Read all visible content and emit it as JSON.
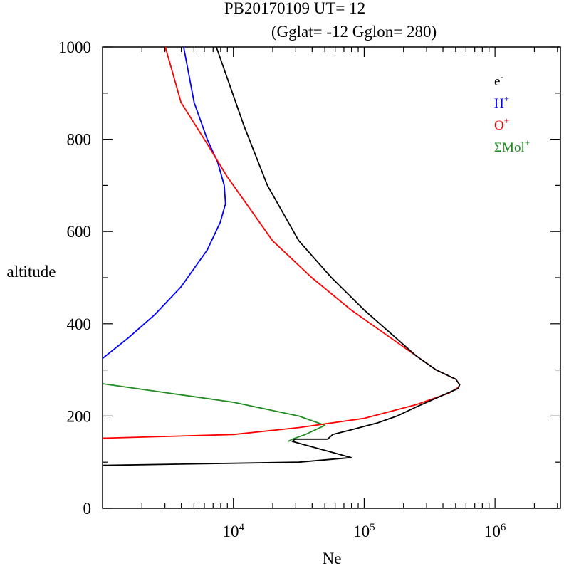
{
  "title": {
    "line1": "PB20170109   UT=  12",
    "line2": "(Gglat= -12   Gglon=  280)"
  },
  "chart_data": {
    "type": "line",
    "xlabel": "Ne",
    "ylabel": "altitude",
    "x_scale": "log",
    "xlim_log10": [
      3.0,
      6.5
    ],
    "ylim": [
      0,
      1000
    ],
    "y_ticks": [
      "0",
      "200",
      "400",
      "600",
      "800",
      "1000"
    ],
    "x_ticks": [
      {
        "log10": 4,
        "base": "10",
        "exp": "4"
      },
      {
        "log10": 5,
        "base": "10",
        "exp": "5"
      },
      {
        "log10": 6,
        "base": "10",
        "exp": "6"
      }
    ],
    "legend_position": "top-right",
    "series": [
      {
        "key": "electron",
        "name": "e",
        "sup": "-",
        "color": "#000000",
        "points": [
          [
            3.0,
            93
          ],
          [
            4.5,
            100
          ],
          [
            4.9,
            110
          ],
          [
            4.45,
            145
          ],
          [
            4.47,
            150
          ],
          [
            4.72,
            150
          ],
          [
            4.76,
            160
          ],
          [
            4.9,
            170
          ],
          [
            5.1,
            185
          ],
          [
            5.25,
            200
          ],
          [
            5.4,
            220
          ],
          [
            5.6,
            245
          ],
          [
            5.72,
            260
          ],
          [
            5.73,
            268
          ],
          [
            5.7,
            280
          ],
          [
            5.55,
            300
          ],
          [
            5.4,
            330
          ],
          [
            5.2,
            380
          ],
          [
            5.0,
            430
          ],
          [
            4.75,
            500
          ],
          [
            4.5,
            580
          ],
          [
            4.26,
            700
          ],
          [
            4.08,
            830
          ],
          [
            3.87,
            1000
          ]
        ]
      },
      {
        "key": "hplus",
        "name": "H",
        "sup": "+",
        "color": "#0000ff",
        "points": [
          [
            3.0,
            325
          ],
          [
            3.2,
            370
          ],
          [
            3.4,
            420
          ],
          [
            3.6,
            480
          ],
          [
            3.8,
            560
          ],
          [
            3.9,
            620
          ],
          [
            3.94,
            660
          ],
          [
            3.93,
            700
          ],
          [
            3.88,
            750
          ],
          [
            3.8,
            800
          ],
          [
            3.7,
            880
          ],
          [
            3.62,
            1000
          ]
        ]
      },
      {
        "key": "oplus",
        "name": "O",
        "sup": "+",
        "color": "#ff0000",
        "points": [
          [
            3.0,
            152
          ],
          [
            4.0,
            160
          ],
          [
            4.5,
            175
          ],
          [
            5.0,
            195
          ],
          [
            5.4,
            225
          ],
          [
            5.65,
            250
          ],
          [
            5.72,
            262
          ],
          [
            5.73,
            268
          ],
          [
            5.7,
            280
          ],
          [
            5.55,
            300
          ],
          [
            5.35,
            340
          ],
          [
            5.15,
            380
          ],
          [
            4.9,
            430
          ],
          [
            4.6,
            500
          ],
          [
            4.3,
            580
          ],
          [
            4.1,
            660
          ],
          [
            3.95,
            720
          ],
          [
            3.8,
            790
          ],
          [
            3.6,
            880
          ],
          [
            3.48,
            1000
          ]
        ]
      },
      {
        "key": "molplus",
        "name": "ΣMol",
        "sup": "+",
        "color": "#228b22",
        "points": [
          [
            3.0,
            270
          ],
          [
            3.5,
            250
          ],
          [
            4.0,
            230
          ],
          [
            4.5,
            200
          ],
          [
            4.6,
            190
          ],
          [
            4.7,
            180
          ],
          [
            4.55,
            160
          ],
          [
            4.45,
            150
          ],
          [
            4.42,
            145
          ]
        ]
      }
    ]
  }
}
